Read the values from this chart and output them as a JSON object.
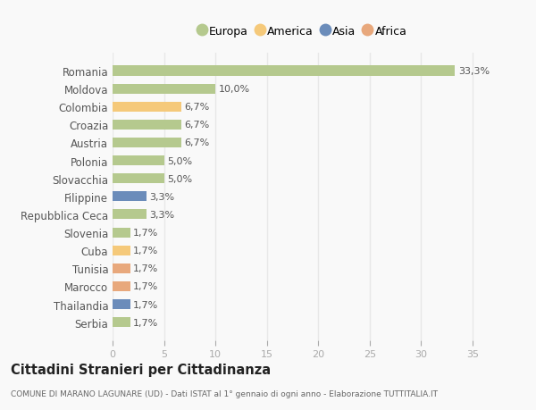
{
  "categories": [
    "Romania",
    "Moldova",
    "Colombia",
    "Croazia",
    "Austria",
    "Polonia",
    "Slovacchia",
    "Filippine",
    "Repubblica Ceca",
    "Slovenia",
    "Cuba",
    "Tunisia",
    "Marocco",
    "Thailandia",
    "Serbia"
  ],
  "values": [
    33.3,
    10.0,
    6.7,
    6.7,
    6.7,
    5.0,
    5.0,
    3.3,
    3.3,
    1.7,
    1.7,
    1.7,
    1.7,
    1.7,
    1.7
  ],
  "labels": [
    "33,3%",
    "10,0%",
    "6,7%",
    "6,7%",
    "6,7%",
    "5,0%",
    "5,0%",
    "3,3%",
    "3,3%",
    "1,7%",
    "1,7%",
    "1,7%",
    "1,7%",
    "1,7%",
    "1,7%"
  ],
  "colors": [
    "#b5c98e",
    "#b5c98e",
    "#f5c97a",
    "#b5c98e",
    "#b5c98e",
    "#b5c98e",
    "#b5c98e",
    "#6b8cba",
    "#b5c98e",
    "#b5c98e",
    "#f5c97a",
    "#e8a87c",
    "#e8a87c",
    "#6b8cba",
    "#b5c98e"
  ],
  "xlim": [
    0,
    37
  ],
  "xticks": [
    0,
    5,
    10,
    15,
    20,
    25,
    30,
    35
  ],
  "legend_labels": [
    "Europa",
    "America",
    "Asia",
    "Africa"
  ],
  "legend_colors": [
    "#b5c98e",
    "#f5c97a",
    "#6b8cba",
    "#e8a87c"
  ],
  "title": "Cittadini Stranieri per Cittadinanza",
  "subtitle": "COMUNE DI MARANO LAGUNARE (UD) - Dati ISTAT al 1° gennaio di ogni anno - Elaborazione TUTTITALIA.IT",
  "background_color": "#f9f9f9",
  "grid_color": "#e8e8e8",
  "bar_height": 0.55,
  "label_fontsize": 8,
  "ytick_fontsize": 8.5,
  "xtick_fontsize": 8,
  "label_color": "#555555",
  "ytick_color": "#555555",
  "xtick_color": "#aaaaaa"
}
